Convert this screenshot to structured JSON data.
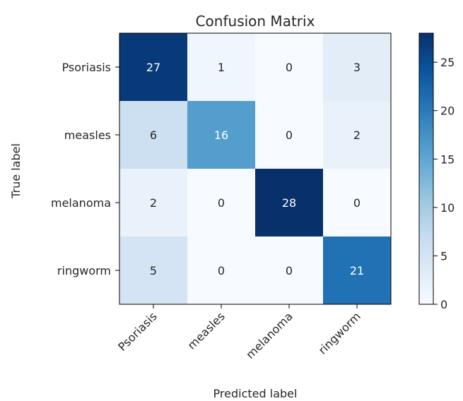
{
  "chart_data": {
    "type": "heatmap",
    "title": "Confusion Matrix",
    "xlabel": "Predicted label",
    "ylabel": "True label",
    "x_categories": [
      "Psoriasis",
      "measles",
      "melanoma",
      "ringworm"
    ],
    "y_categories": [
      "Psoriasis",
      "measles",
      "melanoma",
      "ringworm"
    ],
    "values": [
      [
        27,
        1,
        0,
        3
      ],
      [
        6,
        16,
        0,
        2
      ],
      [
        2,
        0,
        28,
        0
      ],
      [
        5,
        0,
        0,
        21
      ]
    ],
    "colorbar": {
      "ticks": [
        "0",
        "5",
        "10",
        "15",
        "20",
        "25"
      ],
      "range": [
        0,
        28
      ]
    },
    "colormap": "Blues"
  }
}
